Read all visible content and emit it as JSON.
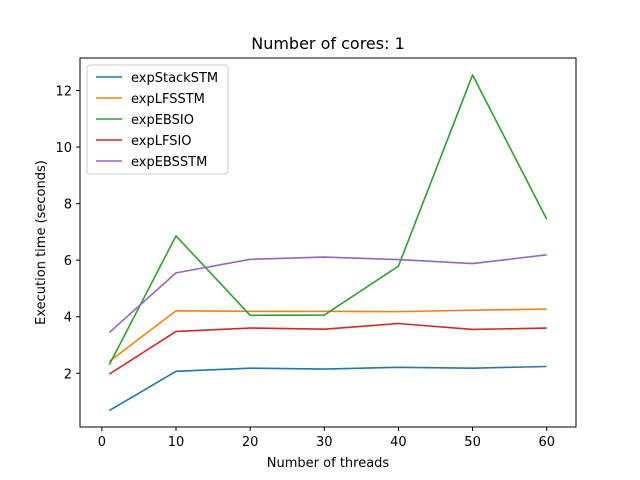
{
  "chart_data": {
    "type": "line",
    "title": "Number of cores: 1",
    "xlabel": "Number of threads",
    "ylabel": "Execution time (seconds)",
    "xlim": [
      -2.95,
      63.95
    ],
    "ylim": [
      0.1,
      13.15
    ],
    "xticks": [
      0,
      10,
      20,
      30,
      40,
      50,
      60
    ],
    "yticks": [
      2,
      4,
      6,
      8,
      10,
      12
    ],
    "grid": false,
    "legend_position": "top-left",
    "x": [
      1,
      10,
      20,
      30,
      40,
      50,
      60
    ],
    "series": [
      {
        "name": "expStackSTM",
        "color": "#1f77b4",
        "values": [
          0.68,
          2.07,
          2.18,
          2.15,
          2.21,
          2.18,
          2.24
        ]
      },
      {
        "name": "expLFSSTM",
        "color": "#ff7f0e",
        "values": [
          2.42,
          4.21,
          4.19,
          4.19,
          4.18,
          4.23,
          4.27
        ]
      },
      {
        "name": "expEBSIO",
        "color": "#2ca02c",
        "values": [
          2.3,
          6.86,
          4.05,
          4.06,
          5.79,
          12.55,
          7.45
        ]
      },
      {
        "name": "expLFSIO",
        "color": "#d62728",
        "values": [
          1.97,
          3.48,
          3.6,
          3.56,
          3.76,
          3.55,
          3.6
        ]
      },
      {
        "name": "expEBSSTM",
        "color": "#9467bd",
        "values": [
          3.44,
          5.55,
          6.03,
          6.11,
          6.02,
          5.88,
          6.19
        ]
      }
    ]
  }
}
